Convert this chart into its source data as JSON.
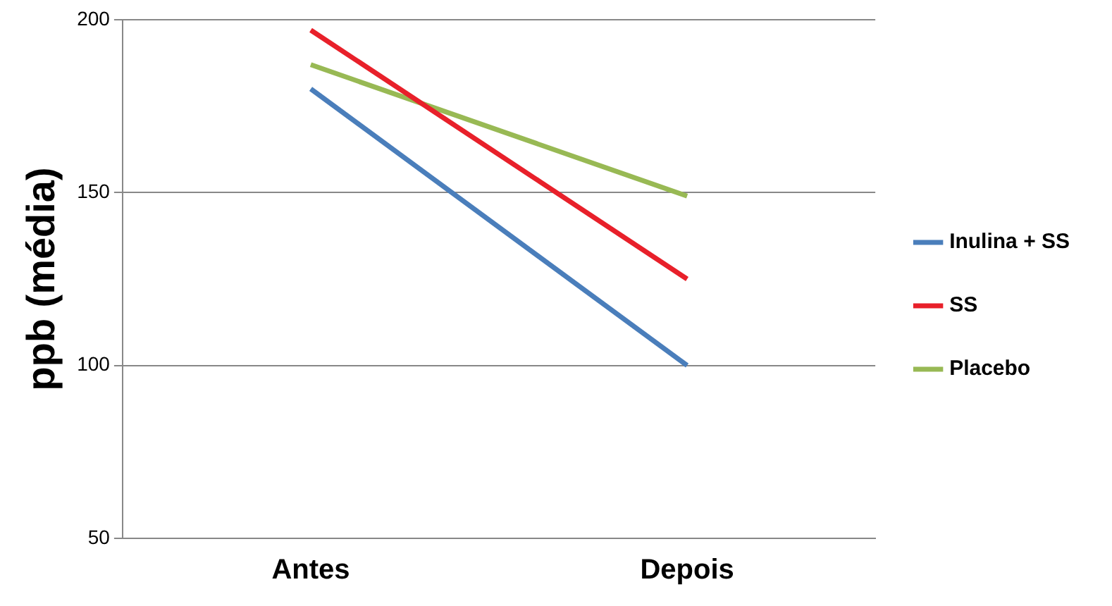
{
  "chart_data": {
    "type": "line",
    "ylabel": "ppb (média)",
    "categories": [
      "Antes",
      "Depois"
    ],
    "series": [
      {
        "name": "Inulina + SS",
        "color": "#4a7ebb",
        "values": [
          180,
          100
        ]
      },
      {
        "name": "SS",
        "color": "#e8202a",
        "values": [
          197,
          125
        ]
      },
      {
        "name": "Placebo",
        "color": "#98b954",
        "values": [
          187,
          149
        ]
      }
    ],
    "ylim": [
      50,
      200
    ],
    "yticks": [
      50,
      100,
      150,
      200
    ],
    "grid": "y",
    "legend": "right",
    "marker": "none"
  }
}
